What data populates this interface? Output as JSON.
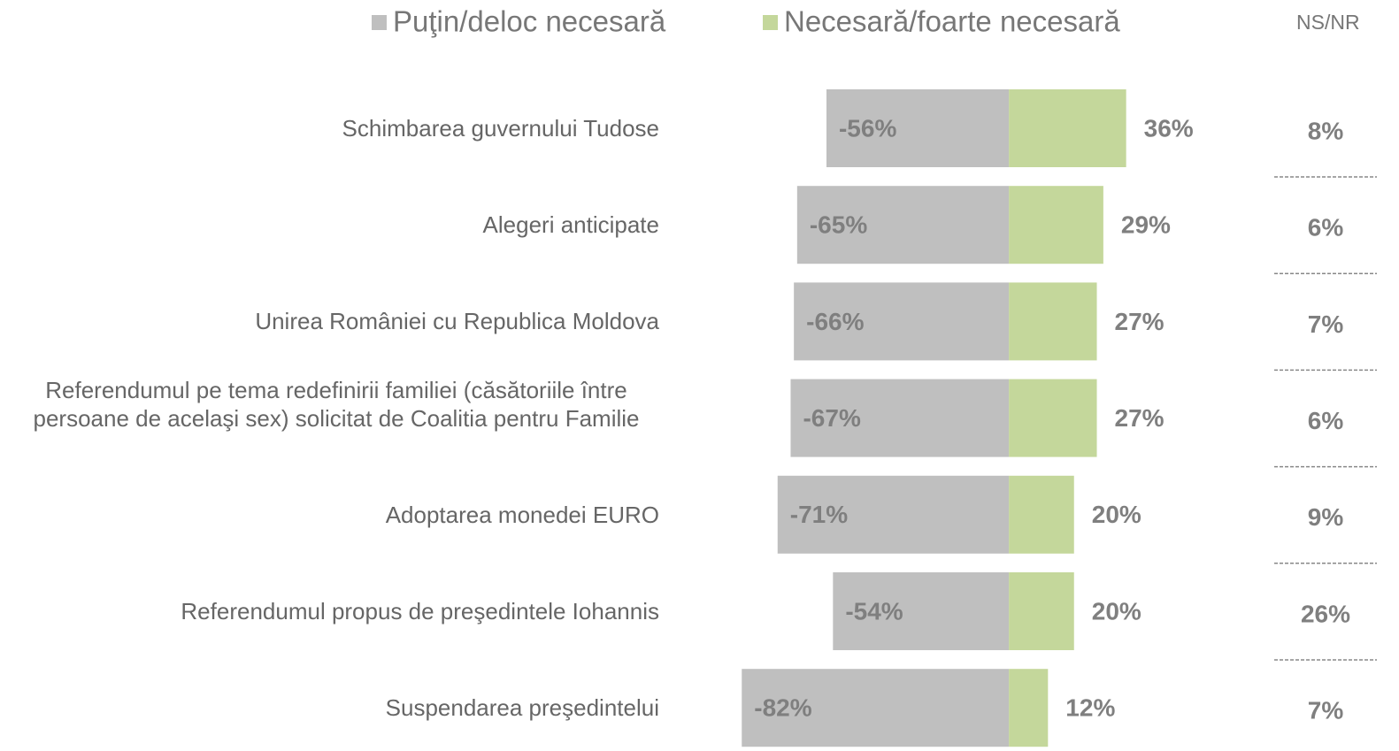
{
  "chart_data": {
    "type": "diverging_bar",
    "categories": [
      "Schimbarea guvernului Tudose",
      "Alegeri anticipate",
      "Unirea României cu Republica Moldova",
      "Referendumul pe tema redefinirii familiei (căsătoriile între persoane de acelaşi sex) solicitat de Coalitia pentru Familie",
      "Adoptarea monedei EURO",
      "Referendumul propus de preşedintele Iohannis",
      "Suspendarea preşedintelui"
    ],
    "series": [
      {
        "name": "Puţin/deloc necesară",
        "color": "#bfbfbf",
        "values": [
          -56,
          -65,
          -66,
          -67,
          -71,
          -54,
          -82
        ],
        "value_labels": [
          "-56%",
          "-65%",
          "-66%",
          "-67%",
          "-71%",
          "-54%",
          "-82%"
        ]
      },
      {
        "name": "Necesară/foarte necesară",
        "color": "#c4d79b",
        "values": [
          36,
          29,
          27,
          27,
          20,
          20,
          12
        ],
        "value_labels": [
          "36%",
          "29%",
          "27%",
          "27%",
          "20%",
          "20%",
          "12%"
        ]
      },
      {
        "name": "NS/NR",
        "values": [
          8,
          6,
          7,
          6,
          9,
          26,
          7
        ],
        "value_labels": [
          "8%",
          "6%",
          "7%",
          "6%",
          "9%",
          "26%",
          "7%"
        ]
      }
    ],
    "xlim": [
      -100,
      60
    ]
  }
}
